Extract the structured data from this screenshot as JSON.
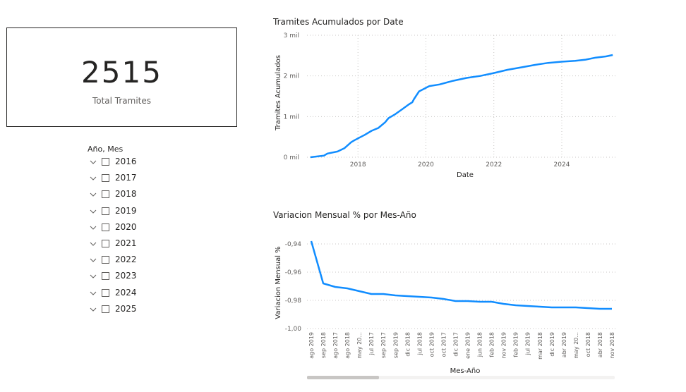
{
  "card": {
    "value": "2515",
    "label": "Total Tramites"
  },
  "slicer": {
    "title": "Año, Mes",
    "items": [
      {
        "label": "2016"
      },
      {
        "label": "2017"
      },
      {
        "label": "2018"
      },
      {
        "label": "2019"
      },
      {
        "label": "2020"
      },
      {
        "label": "2021"
      },
      {
        "label": "2022"
      },
      {
        "label": "2023"
      },
      {
        "label": "2024"
      },
      {
        "label": "2025"
      }
    ]
  },
  "colors": {
    "series": "#118DFF",
    "grid": "#C8C6C4",
    "axis_text": "#605E5C",
    "scrollbar_track": "#F3F2F1",
    "scrollbar_thumb": "#C8C6C4"
  },
  "chart_data": [
    {
      "type": "line",
      "title": "Tramites Acumulados por Date",
      "xlabel": "Date",
      "ylabel": "Tramites Acumulados",
      "xlim": [
        2016.5,
        2025.6
      ],
      "ylim": [
        0,
        3000
      ],
      "x_ticks": [
        2018,
        2020,
        2022,
        2024
      ],
      "x_tick_labels": [
        "2018",
        "2020",
        "2022",
        "2024"
      ],
      "y_ticks": [
        0,
        1000,
        2000,
        3000
      ],
      "y_tick_labels": [
        "0 mil",
        "1 mil",
        "2 mil",
        "3 mil"
      ],
      "grid": true,
      "series": [
        {
          "x": [
            2016.6,
            2017.0,
            2017.1,
            2017.4,
            2017.6,
            2017.8,
            2017.9,
            2018.2,
            2018.4,
            2018.6,
            2018.8,
            2018.9,
            2019.1,
            2019.3,
            2019.5,
            2019.6,
            2019.65,
            2019.8,
            2020.1,
            2020.4,
            2020.8,
            2021.2,
            2021.6,
            2022.0,
            2022.4,
            2022.8,
            2023.2,
            2023.6,
            2024.0,
            2024.4,
            2024.7,
            2025.0,
            2025.3,
            2025.5
          ],
          "y": [
            0,
            40,
            90,
            140,
            220,
            370,
            420,
            550,
            650,
            720,
            860,
            960,
            1060,
            1180,
            1300,
            1350,
            1430,
            1620,
            1750,
            1790,
            1880,
            1950,
            2000,
            2070,
            2150,
            2210,
            2270,
            2320,
            2350,
            2370,
            2400,
            2450,
            2480,
            2515
          ]
        }
      ]
    },
    {
      "type": "line",
      "title": "Variacion Mensual % por Mes-Año",
      "xlabel": "Mes-Año",
      "ylabel": "Variacion Mensual %",
      "ylim": [
        -1.0,
        -0.93
      ],
      "y_ticks": [
        -1.0,
        -0.98,
        -0.96,
        -0.94
      ],
      "y_tick_labels": [
        "-1,00",
        "-0,98",
        "-0,96",
        "-0,94"
      ],
      "grid": true,
      "categories": [
        "ago 2019",
        "sep 2018",
        "ago 2017",
        "ago 2018",
        "may 20...",
        "jul 2017",
        "sep 2017",
        "sep 2019",
        "dic 2018",
        "jul 2018",
        "oct 2019",
        "oct 2017",
        "dic 2017",
        "ene 2019",
        "jun 2018",
        "feb 2018",
        "nov 2019",
        "feb 2019",
        "jul 2019",
        "mar 2018",
        "dic 2019",
        "abr 2019",
        "may 20...",
        "oct 2018",
        "abr 2018",
        "nov 2018"
      ],
      "series": [
        {
          "values": [
            -0.938,
            -0.968,
            -0.9705,
            -0.9715,
            -0.9735,
            -0.9755,
            -0.9755,
            -0.9765,
            -0.977,
            -0.9775,
            -0.978,
            -0.979,
            -0.9805,
            -0.9805,
            -0.981,
            -0.981,
            -0.9825,
            -0.9835,
            -0.984,
            -0.9845,
            -0.985,
            -0.985,
            -0.985,
            -0.9855,
            -0.986,
            -0.986
          ]
        }
      ]
    }
  ]
}
